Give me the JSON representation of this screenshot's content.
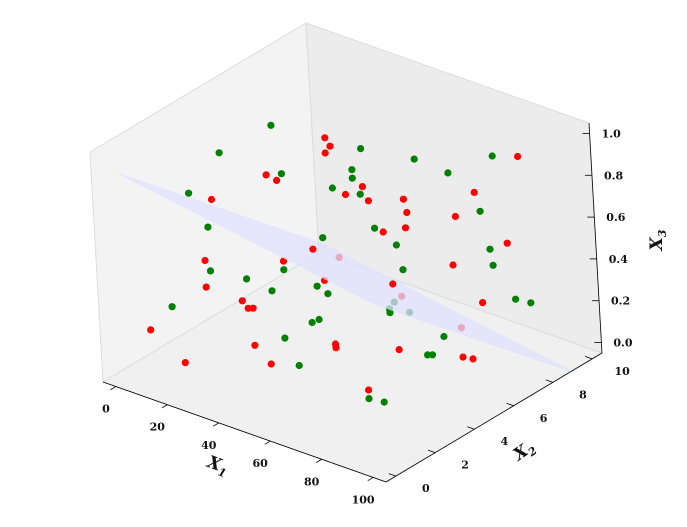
{
  "chart_data": {
    "type": "scatter",
    "title": "",
    "projection": "3d",
    "axes": {
      "x": {
        "label": "X",
        "subscript": "1",
        "ticks": [
          "0",
          "20",
          "40",
          "60",
          "80",
          "100"
        ],
        "range": [
          -5,
          105
        ]
      },
      "y": {
        "label": "X",
        "subscript": "2",
        "ticks": [
          "0",
          "2",
          "4",
          "6",
          "8",
          "10"
        ],
        "range": [
          -0.5,
          10.5
        ]
      },
      "z": {
        "label": "X",
        "subscript": "3",
        "ticks": [
          "0.0",
          "0.2",
          "0.4",
          "0.6",
          "0.8",
          "1.0"
        ],
        "range": [
          -0.05,
          1.05
        ]
      }
    },
    "colors": {
      "class_a": "#ff0000",
      "class_b": "#008000",
      "plane": "#e0e0ff",
      "pane": "#f2f2f2",
      "pane_edge": "#dcdcdc"
    },
    "plane": {
      "description_of_fit": "separating plane",
      "z_at_x0_y0": 0.95,
      "z_per_x": -0.002,
      "z_per_y": -0.09
    },
    "series": [
      {
        "color": "#ff0000",
        "points": [
          [
            3,
            1,
            0.15
          ],
          [
            16,
            1,
            0.05
          ],
          [
            38,
            6,
            0.9
          ],
          [
            70,
            9,
            0.65
          ],
          [
            90,
            8,
            0.55
          ],
          [
            60,
            3,
            0.2
          ],
          [
            25,
            5,
            0.35
          ],
          [
            42,
            2,
            0.1
          ],
          [
            85,
            3,
            0.3
          ],
          [
            50,
            8,
            0.45
          ],
          [
            30,
            0.5,
            0.5
          ],
          [
            75,
            5,
            0.8
          ],
          [
            95,
            6,
            0.4
          ],
          [
            55,
            7,
            0.2
          ],
          [
            10,
            3,
            0.4
          ],
          [
            65,
            2,
            0.6
          ],
          [
            88,
            9,
            0.9
          ],
          [
            20,
            8,
            0.75
          ],
          [
            45,
            4,
            0.55
          ],
          [
            33,
            9,
            0.3
          ],
          [
            78,
            7,
            0.15
          ],
          [
            12,
            6,
            0.65
          ],
          [
            58,
            5,
            0.85
          ],
          [
            92,
            2,
            0.7
          ],
          [
            28,
            3,
            0.25
          ],
          [
            68,
            8,
            0.35
          ],
          [
            40,
            1,
            0.45
          ],
          [
            82,
            4,
            0.95
          ],
          [
            15,
            9,
            0.1
          ],
          [
            52,
            6,
            0.7
          ],
          [
            72,
            3,
            0.05
          ],
          [
            35,
            7,
            0.6
          ],
          [
            98,
            5,
            0.2
          ],
          [
            22,
            2,
            0.8
          ],
          [
            62,
            9,
            0.5
          ],
          [
            48,
            0.5,
            0.3
          ],
          [
            8,
            7,
            0.55
          ],
          [
            86,
            6,
            0.1
          ],
          [
            44,
            5,
            0.95
          ],
          [
            76,
            1,
            0.4
          ],
          [
            18,
            4,
            0.15
          ]
        ]
      },
      {
        "color": "#008000",
        "points": [
          [
            80,
            2,
            0.1
          ],
          [
            95,
            4,
            0.35
          ],
          [
            60,
            6,
            0.25
          ],
          [
            45,
            3,
            0.05
          ],
          [
            30,
            8,
            0.6
          ],
          [
            10,
            5,
            0.2
          ],
          [
            75,
            9,
            0.4
          ],
          [
            88,
            7,
            0.75
          ],
          [
            52,
            1,
            0.55
          ],
          [
            20,
            2,
            0.45
          ],
          [
            65,
            4,
            0.9
          ],
          [
            40,
            9,
            0.15
          ],
          [
            98,
            8,
            0.3
          ],
          [
            5,
            3,
            0.7
          ],
          [
            35,
            5,
            0.1
          ],
          [
            70,
            1,
            0.65
          ],
          [
            25,
            7,
            0.35
          ],
          [
            55,
            8,
            0.8
          ],
          [
            90,
            3,
            0.5
          ],
          [
            15,
            6,
            0.9
          ],
          [
            48,
            2,
            0.25
          ],
          [
            82,
            5,
            0.15
          ],
          [
            60,
            9,
            0.7
          ],
          [
            33,
            4,
            0.4
          ],
          [
            72,
            6,
            0.05
          ],
          [
            12,
            1,
            0.3
          ],
          [
            42,
            7,
            0.85
          ],
          [
            94,
            1,
            0.2
          ],
          [
            58,
            3,
            0.45
          ],
          [
            22,
            9,
            0.55
          ],
          [
            86,
            8,
            0.95
          ],
          [
            38,
            6,
            0.7
          ],
          [
            66,
            5,
            0.3
          ],
          [
            2,
            8,
            0.5
          ],
          [
            78,
            3,
            0.85
          ],
          [
            50,
            7,
            0.1
          ],
          [
            28,
            1,
            0.75
          ],
          [
            100,
            6,
            0.6
          ],
          [
            46,
            8,
            0.35
          ],
          [
            18,
            3,
            0.95
          ],
          [
            62,
            2,
            0.4
          ],
          [
            84,
            9,
            0.2
          ]
        ]
      }
    ],
    "grid": false,
    "legend": "none"
  }
}
